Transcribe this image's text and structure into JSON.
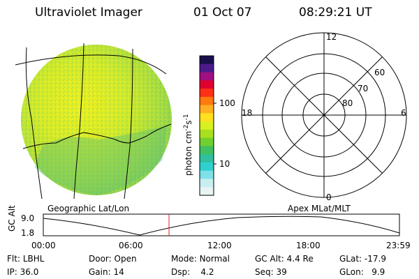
{
  "header": {
    "title": "Ultraviolet Imager",
    "date": "01 Oct 07",
    "time": "08:29:21 UT"
  },
  "colorbar": {
    "label": "photon cm",
    "sup1": "-2",
    "s": "s",
    "sup2": "-1",
    "ticks": [
      "100",
      "10"
    ],
    "colors": [
      "#1a0f4d",
      "#4d1a8c",
      "#a01080",
      "#e00030",
      "#ff3018",
      "#ff7a10",
      "#ffb020",
      "#ffe020",
      "#d8f020",
      "#a8e020",
      "#70d030",
      "#40c060",
      "#30c0a0",
      "#30d0d0",
      "#80e0e8",
      "#c8eef0",
      "#e8f4f4"
    ]
  },
  "left_map": {
    "caption": "Geographic Lat/Lon"
  },
  "polar": {
    "caption": "Apex MLat/MLT",
    "mlt_labels": {
      "top": "12",
      "left": "18",
      "right": "6",
      "bottom": "0"
    },
    "lat_labels": [
      "60",
      "70",
      "80"
    ]
  },
  "timeline": {
    "ylabel": "GC Alt",
    "ytick_high": "9.0",
    "ytick_low": "1.8",
    "xticks": [
      "00:00",
      "06:00",
      "12:00",
      "18:00",
      "23:59"
    ],
    "current_fraction": 0.353
  },
  "status": {
    "flt_label": "Flt:",
    "flt_value": "LBHL",
    "ip_label": "IP:",
    "ip_value": "36.0",
    "door_label": "Door:",
    "door_value": "Open",
    "gain_label": "Gain:",
    "gain_value": "14",
    "mode_label": "Mode:",
    "mode_value": "Normal",
    "dsp_label": "Dsp:",
    "dsp_value": "4.2",
    "gcalt_label": "GC Alt:",
    "gcalt_value": "4.4 Re",
    "seq_label": "Seq:",
    "seq_value": "39",
    "glat_label": "GLat:",
    "glat_value": "-17.9",
    "glon_label": "GLon:",
    "glon_value": "9.9"
  }
}
